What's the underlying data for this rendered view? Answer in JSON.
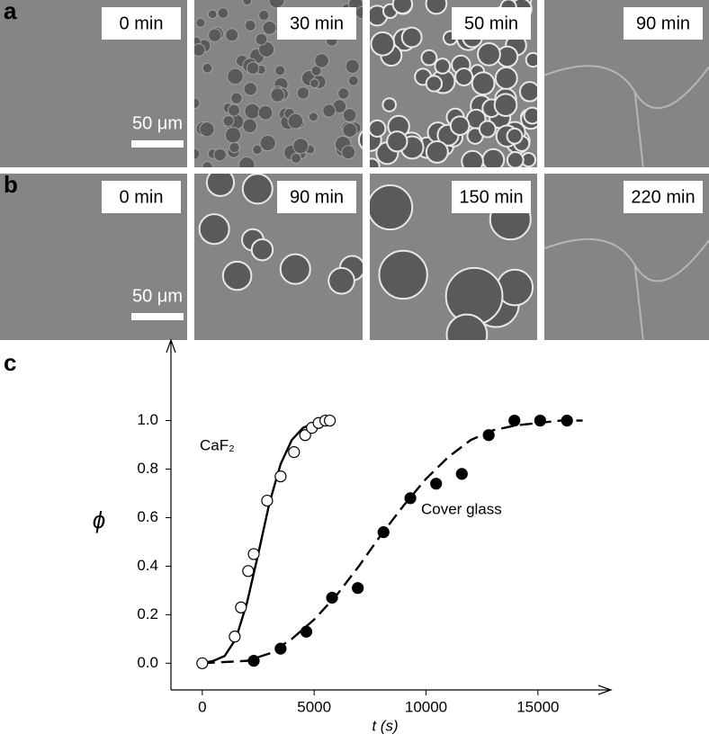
{
  "panels": [
    {
      "label": "a",
      "frames": [
        "0 min",
        "30 min",
        "50 min",
        "90 min"
      ],
      "scale_bar": "50 μm"
    },
    {
      "label": "b",
      "frames": [
        "0 min",
        "90 min",
        "150 min",
        "220 min"
      ],
      "scale_bar": "50 μm"
    }
  ],
  "chart_data": {
    "type": "scatter",
    "panel_label": "c",
    "xlabel": "t (s)",
    "ylabel": "ϕ",
    "annotations": [
      "CaF₂",
      "Cover glass"
    ],
    "xlim": [
      -1400,
      17700
    ],
    "ylim": [
      -0.11,
      1.28
    ],
    "xticks": [
      0,
      5000,
      10000,
      15000
    ],
    "yticks": [
      {
        "value": 0,
        "label": "0.0"
      },
      0.2,
      0.4,
      0.6,
      0.8,
      {
        "value": 1,
        "label": "1.0"
      }
    ],
    "series": [
      {
        "marker": "open",
        "color": "#000",
        "x": [
          0,
          1450,
          1730,
          2050,
          2300,
          2900,
          3500,
          4100,
          4600,
          4900,
          5200,
          5500,
          5700
        ],
        "values": [
          0,
          0.11,
          0.23,
          0.38,
          0.45,
          0.67,
          0.77,
          0.87,
          0.94,
          0.97,
          0.99,
          1,
          1
        ]
      },
      {
        "marker": "filled",
        "color": "#000",
        "x": [
          2300,
          3500,
          4650,
          5800,
          6950,
          8100,
          9300,
          10450,
          11600,
          12800,
          13950,
          15100,
          16300
        ],
        "values": [
          0.01,
          0.06,
          0.13,
          0.27,
          0.31,
          0.54,
          0.68,
          0.74,
          0.78,
          0.94,
          1,
          1,
          1
        ]
      },
      {
        "line": "solid",
        "color": "#000",
        "x": [
          0,
          500,
          1000,
          1500,
          2000,
          2500,
          3000,
          3500,
          4000,
          4500,
          5000,
          5500
        ],
        "values": [
          0,
          0.01,
          0.03,
          0.1,
          0.25,
          0.45,
          0.66,
          0.82,
          0.92,
          0.97,
          0.99,
          1
        ]
      },
      {
        "line": "dashed",
        "color": "#000",
        "x": [
          0,
          2000,
          3000,
          4000,
          5000,
          6000,
          7000,
          8000,
          9000,
          10000,
          11000,
          12000,
          13000,
          14000,
          15000,
          16000,
          17000
        ],
        "values": [
          0,
          0.01,
          0.04,
          0.1,
          0.18,
          0.28,
          0.4,
          0.53,
          0.65,
          0.76,
          0.85,
          0.92,
          0.96,
          0.98,
          0.99,
          1,
          1
        ]
      }
    ]
  }
}
